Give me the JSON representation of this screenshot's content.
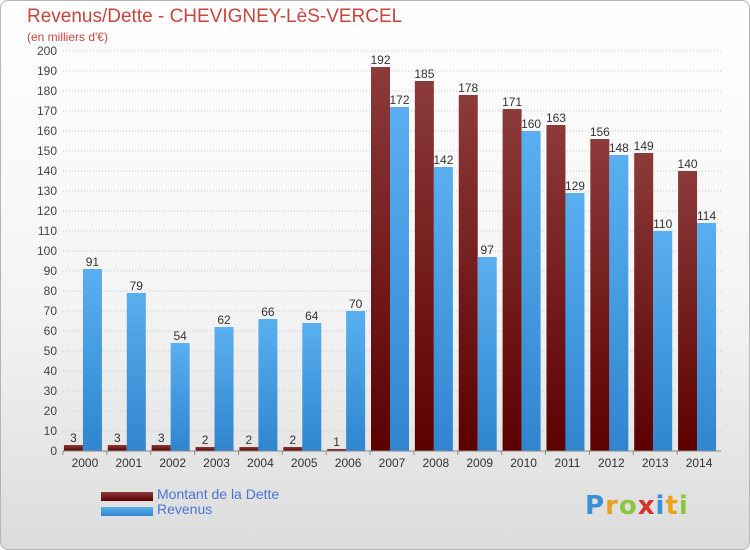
{
  "title": "Revenus/Dette - CHEVIGNEY-LèS-VERCEL",
  "subtitle": "(en milliers d'€)",
  "legend": {
    "debt_label": "Montant de la Dette",
    "revenue_label": "Revenus"
  },
  "logo": {
    "letters": [
      "P",
      "r",
      "o",
      "x",
      "i",
      "t",
      "i"
    ],
    "colors": [
      "#3a8fd6",
      "#e8a21b",
      "#8cc63e",
      "#d8332a",
      "#3a8fd6",
      "#e8a21b",
      "#8cc63e"
    ]
  },
  "colors": {
    "debt_top": "#8c3a3a",
    "debt_bottom": "#5c0000",
    "revenue_top": "#5aaff0",
    "revenue_bottom": "#2f86cf",
    "title": "#c8443c",
    "legend_text": "#4a73d9"
  },
  "chart_data": {
    "type": "bar",
    "categories": [
      "2000",
      "2001",
      "2002",
      "2003",
      "2004",
      "2005",
      "2006",
      "2007",
      "2008",
      "2009",
      "2010",
      "2011",
      "2012",
      "2013",
      "2014"
    ],
    "series": [
      {
        "name": "Montant de la Dette",
        "values": [
          3,
          3,
          3,
          2,
          2,
          2,
          1,
          192,
          185,
          178,
          171,
          163,
          156,
          149,
          140
        ]
      },
      {
        "name": "Revenus",
        "values": [
          91,
          79,
          54,
          62,
          66,
          64,
          70,
          172,
          142,
          97,
          160,
          129,
          148,
          110,
          114
        ]
      }
    ],
    "ylim": [
      0,
      200
    ],
    "yticks": [
      0,
      10,
      20,
      30,
      40,
      50,
      60,
      70,
      80,
      90,
      100,
      110,
      120,
      130,
      140,
      150,
      160,
      170,
      180,
      190,
      200
    ],
    "grid": true,
    "legend_position": "bottom-left"
  }
}
